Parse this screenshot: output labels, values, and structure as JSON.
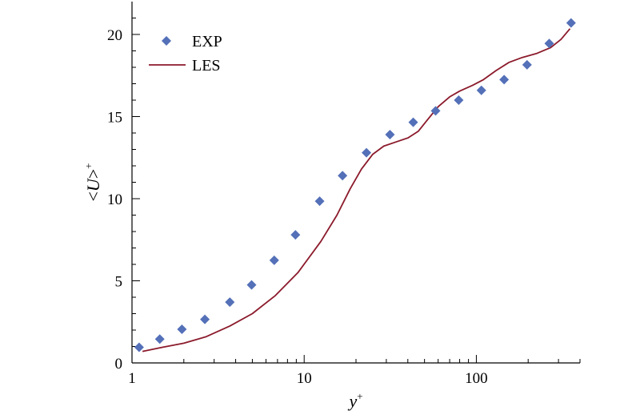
{
  "chart_data": {
    "type": "line",
    "xscale": "log",
    "xlim": [
      1,
      400
    ],
    "ylim": [
      0,
      22
    ],
    "xticks": [
      {
        "value": 1,
        "label": "1"
      },
      {
        "value": 10,
        "label": "10"
      },
      {
        "value": 100,
        "label": "100"
      }
    ],
    "yticks": [
      {
        "value": 0,
        "label": "0"
      },
      {
        "value": 5,
        "label": "5"
      },
      {
        "value": 10,
        "label": "10"
      },
      {
        "value": 15,
        "label": "15"
      },
      {
        "value": 20,
        "label": "20"
      }
    ],
    "xlabel": "y",
    "xlabel_sup": "+",
    "ylabel": "<U>",
    "ylabel_sup": "+",
    "grid": false,
    "legend_position": "top-left",
    "series": [
      {
        "name": "EXP",
        "kind": "scatter",
        "marker": "diamond",
        "color": "#5470b8",
        "x": [
          1.1,
          1.45,
          1.95,
          2.65,
          3.7,
          4.95,
          6.7,
          8.9,
          12.3,
          16.7,
          23,
          31.5,
          43,
          58,
          79,
          107,
          145,
          197,
          265,
          355
        ],
        "y": [
          0.95,
          1.45,
          2.05,
          2.65,
          3.7,
          4.75,
          6.25,
          7.8,
          9.85,
          11.4,
          12.8,
          13.9,
          14.65,
          15.35,
          16.0,
          16.6,
          17.25,
          18.15,
          19.45,
          20.7
        ]
      },
      {
        "name": "LES",
        "kind": "line",
        "color": "#8b1a2b",
        "x": [
          1.15,
          1.5,
          2.0,
          2.7,
          3.7,
          5.0,
          6.8,
          9.2,
          12.5,
          15.5,
          18.5,
          21.5,
          25,
          29,
          34,
          40,
          46,
          52,
          60,
          70,
          80,
          95,
          110,
          130,
          155,
          185,
          225,
          270,
          310,
          350
        ],
        "y": [
          0.7,
          0.95,
          1.2,
          1.6,
          2.25,
          3.0,
          4.1,
          5.5,
          7.4,
          9.0,
          10.6,
          11.8,
          12.7,
          13.2,
          13.45,
          13.7,
          14.1,
          14.8,
          15.6,
          16.2,
          16.55,
          16.9,
          17.25,
          17.8,
          18.3,
          18.6,
          18.85,
          19.2,
          19.7,
          20.35
        ]
      }
    ]
  }
}
